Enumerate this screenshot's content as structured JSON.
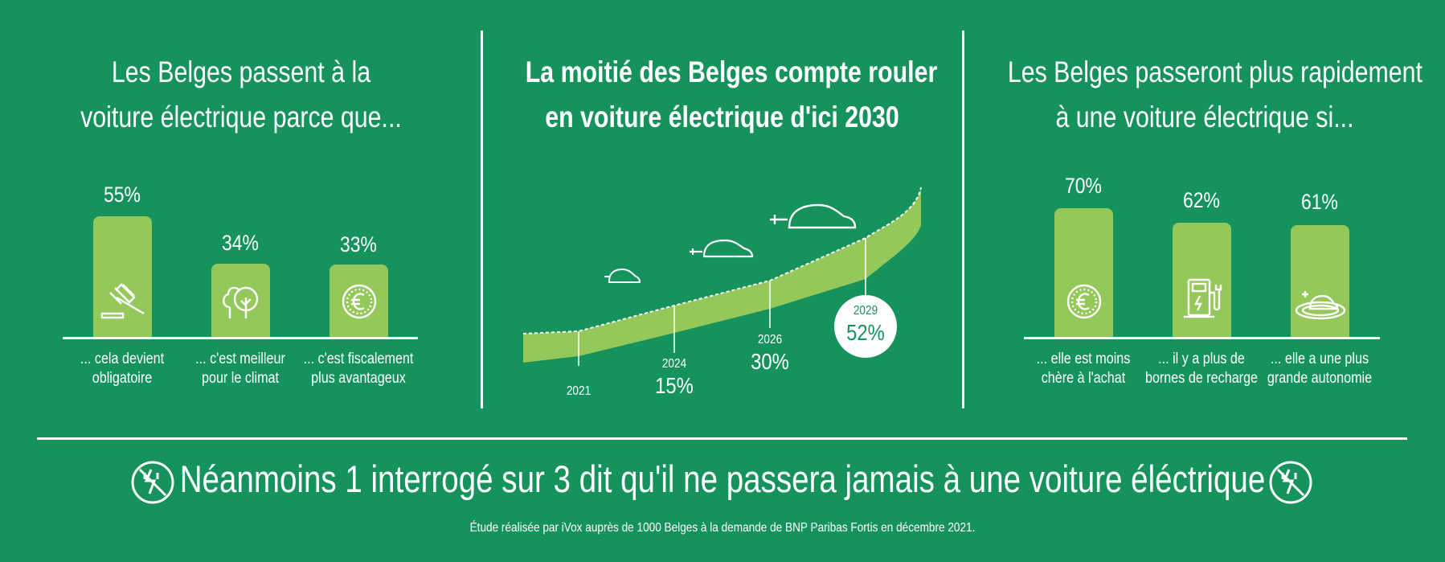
{
  "colors": {
    "background": "#16935d",
    "bar": "#94c85a",
    "text": "#ffffff"
  },
  "left_panel": {
    "title_line1": "Les Belges passent à la",
    "title_line2": "voiture électrique parce que...",
    "bars": [
      {
        "value": "55%",
        "label1": "... cela devient",
        "label2": "obligatoire",
        "icon": "gavel-icon"
      },
      {
        "value": "34%",
        "label1": "... c'est meilleur",
        "label2": "pour le climat",
        "icon": "tree-icon"
      },
      {
        "value": "33%",
        "label1": "... c'est fiscalement",
        "label2": "plus avantageux",
        "icon": "euro-icon"
      }
    ]
  },
  "center_panel": {
    "title_line1": "La moitié des Belges compte rouler",
    "title_line2": "en voiture électrique d'ici 2030"
  },
  "right_panel": {
    "title_line1": "Les Belges passeront plus rapidement",
    "title_line2": "à une voiture électrique si...",
    "bars": [
      {
        "value": "70%",
        "label1": "... elle est moins",
        "label2": "chère à l'achat",
        "icon": "euro-icon"
      },
      {
        "value": "62%",
        "label1": "... il y a plus de",
        "label2": "bornes de recharge",
        "icon": "charging-station-icon"
      },
      {
        "value": "61%",
        "label1": "... elle a une plus",
        "label2": "grande autonomie",
        "icon": "car-on-plate-icon"
      }
    ]
  },
  "bottom": {
    "statement": "Néanmoins 1 interrogé sur 3 dit qu'il ne passera jamais à une voiture éléctrique",
    "footnote": "Étude réalisée par iVox auprès de 1000 Belges à la demande de BNP Paribas Fortis en décembre 2021."
  },
  "chart_data": [
    {
      "type": "bar",
      "title": "Les Belges passent à la voiture électrique parce que...",
      "categories": [
        "... cela devient obligatoire",
        "... c'est meilleur pour le climat",
        "... c'est fiscalement plus avantageux"
      ],
      "values": [
        55,
        34,
        33
      ],
      "unit": "%"
    },
    {
      "type": "area",
      "title": "La moitié des Belges compte rouler en voiture électrique d'ici 2030",
      "x": [
        "2021",
        "2024",
        "2026",
        "2029"
      ],
      "values": [
        null,
        15,
        30,
        52
      ],
      "labels": [
        "",
        "15%",
        "30%",
        "52%"
      ],
      "unit": "%"
    },
    {
      "type": "bar",
      "title": "Les Belges passeront plus rapidement à une voiture électrique si...",
      "categories": [
        "... elle est moins chère à l'achat",
        "... il y a plus de bornes de recharge",
        "... elle a une plus grande autonomie"
      ],
      "values": [
        70,
        62,
        61
      ],
      "unit": "%"
    }
  ]
}
